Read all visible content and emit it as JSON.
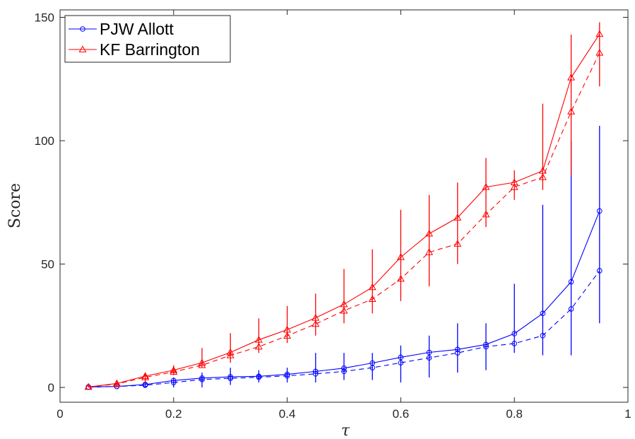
{
  "chart_data": {
    "type": "line",
    "xlabel": "τ",
    "ylabel": "Score",
    "xlim": [
      0,
      1
    ],
    "ylim": [
      -6,
      153
    ],
    "x_ticks": [
      0,
      0.2,
      0.4,
      0.6,
      0.8,
      1
    ],
    "x_tick_labels": [
      "0",
      "0.2",
      "0.4",
      "0.6",
      "0.8",
      "1"
    ],
    "y_ticks": [
      0,
      50,
      100,
      150
    ],
    "y_tick_labels": [
      "0",
      "50",
      "100",
      "150"
    ],
    "x": [
      0.05,
      0.1,
      0.15,
      0.2,
      0.25,
      0.3,
      0.35,
      0.4,
      0.45,
      0.5,
      0.55,
      0.6,
      0.65,
      0.7,
      0.75,
      0.8,
      0.85,
      0.9,
      0.95
    ],
    "grid": false,
    "legend_position": "top-left",
    "series": [
      {
        "name": "PJW Allott",
        "color": "#0000ff",
        "marker": "circle",
        "solid": [
          0.2,
          0.4,
          1.2,
          2.8,
          3.8,
          4.3,
          4.5,
          5.3,
          6.5,
          7.8,
          9.9,
          12.2,
          14.2,
          15.4,
          17.4,
          21.8,
          30.0,
          42.8,
          71.5
        ],
        "dashed": [
          0.1,
          0.4,
          0.9,
          2.0,
          3.2,
          3.7,
          4.1,
          4.7,
          5.5,
          6.5,
          8.0,
          10.0,
          12.0,
          14.0,
          16.5,
          17.8,
          21.0,
          31.8,
          47.3
        ],
        "error_low": [
          0,
          0,
          0,
          0,
          0,
          1,
          2,
          2,
          2,
          3,
          3,
          2,
          4,
          6,
          7,
          14,
          13,
          13,
          26
        ],
        "error_high": [
          1,
          1,
          2,
          4,
          6,
          8,
          7,
          8,
          14,
          14,
          14,
          17,
          21,
          26,
          26,
          42,
          74,
          100,
          106
        ]
      },
      {
        "name": "KF Barrington",
        "color": "#ff0000",
        "marker": "triangle",
        "solid": [
          0.2,
          1.6,
          4.6,
          7.0,
          10.0,
          14.2,
          19.3,
          23.4,
          28.2,
          33.7,
          40.6,
          52.8,
          62.3,
          68.8,
          81.2,
          83.1,
          87.8,
          125.6,
          143.2
        ],
        "dashed": [
          0.2,
          1.4,
          4.1,
          6.3,
          9.0,
          13.0,
          16.5,
          20.9,
          25.7,
          31.1,
          35.8,
          44.0,
          54.8,
          58.2,
          70.1,
          81.2,
          85.2,
          111.8,
          135.6
        ],
        "error_low": [
          0,
          0,
          2,
          5,
          8,
          10,
          14,
          18,
          21,
          26,
          30,
          35,
          41,
          50,
          65,
          76,
          80,
          86,
          122
        ],
        "error_high": [
          1,
          3,
          6,
          9,
          16,
          22,
          28,
          33,
          38,
          48,
          56,
          72,
          78,
          83,
          93,
          88,
          115,
          143,
          148
        ]
      }
    ]
  }
}
